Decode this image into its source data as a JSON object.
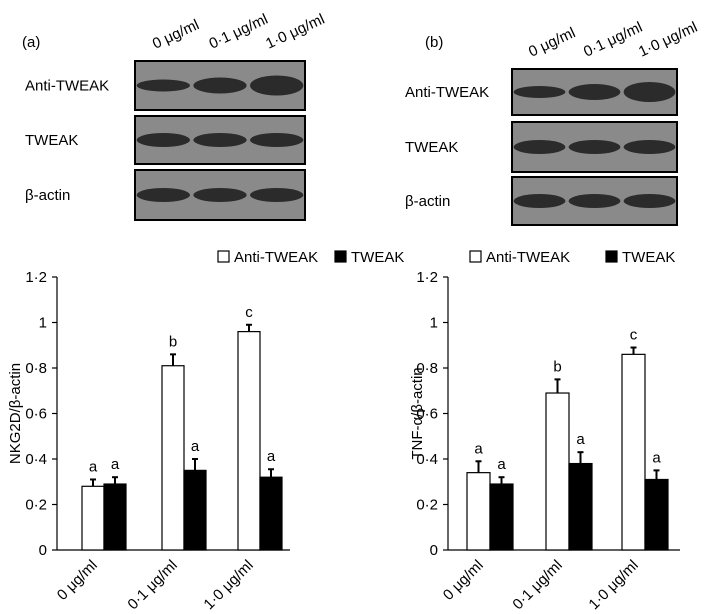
{
  "chart_data": [
    {
      "type": "bar",
      "panel_label": "(a)",
      "lanes": [
        "0 μg/ml",
        "0·1 μg/ml",
        "1·0 μg/ml"
      ],
      "blot_rows": [
        "Anti-TWEAK",
        "TWEAK",
        "β-actin"
      ],
      "ylabel": "NKG2D/β-actin",
      "categories": [
        "0 μg/ml",
        "0·1 μg/ml",
        "1·0 μg/ml"
      ],
      "series": [
        {
          "name": "Anti-TWEAK",
          "color": "#ffffff",
          "values": [
            0.28,
            0.81,
            0.96
          ],
          "errors": [
            0.03,
            0.05,
            0.03
          ],
          "annotations": [
            "a",
            "b",
            "c"
          ]
        },
        {
          "name": "TWEAK",
          "color": "#000000",
          "values": [
            0.29,
            0.35,
            0.32
          ],
          "errors": [
            0.03,
            0.05,
            0.035
          ],
          "annotations": [
            "a",
            "a",
            "a"
          ]
        }
      ],
      "ylim": [
        0,
        1.2
      ],
      "yticks": [
        0,
        {
          "value": 0.2,
          "label": "0·2"
        },
        {
          "value": 0.4,
          "label": "0·4"
        },
        {
          "value": 0.6,
          "label": "0·6"
        },
        {
          "value": 0.8,
          "label": "0·8"
        },
        1,
        {
          "value": 1.2,
          "label": "1·2"
        }
      ]
    },
    {
      "type": "bar",
      "panel_label": "(b)",
      "lanes": [
        "0 μg/ml",
        "0·1 μg/ml",
        "1·0 μg/ml"
      ],
      "blot_rows": [
        "Anti-TWEAK",
        "TWEAK",
        "β-actin"
      ],
      "ylabel": "TNF-α/β-actin",
      "categories": [
        "0 μg/ml",
        "0·1 μg/ml",
        "1·0 μg/ml"
      ],
      "series": [
        {
          "name": "Anti-TWEAK",
          "color": "#ffffff",
          "values": [
            0.34,
            0.69,
            0.86
          ],
          "errors": [
            0.05,
            0.06,
            0.03
          ],
          "annotations": [
            "a",
            "b",
            "c"
          ]
        },
        {
          "name": "TWEAK",
          "color": "#000000",
          "values": [
            0.29,
            0.38,
            0.31
          ],
          "errors": [
            0.03,
            0.05,
            0.04
          ],
          "annotations": [
            "a",
            "a",
            "a"
          ]
        }
      ],
      "ylim": [
        0,
        1.2
      ],
      "yticks": [
        0,
        {
          "value": 0.2,
          "label": "0·2"
        },
        {
          "value": 0.4,
          "label": "0·4"
        },
        {
          "value": 0.6,
          "label": "0·6"
        },
        {
          "value": 0.8,
          "label": "0·8"
        },
        1,
        {
          "value": 1.2,
          "label": "1·2"
        }
      ]
    }
  ]
}
